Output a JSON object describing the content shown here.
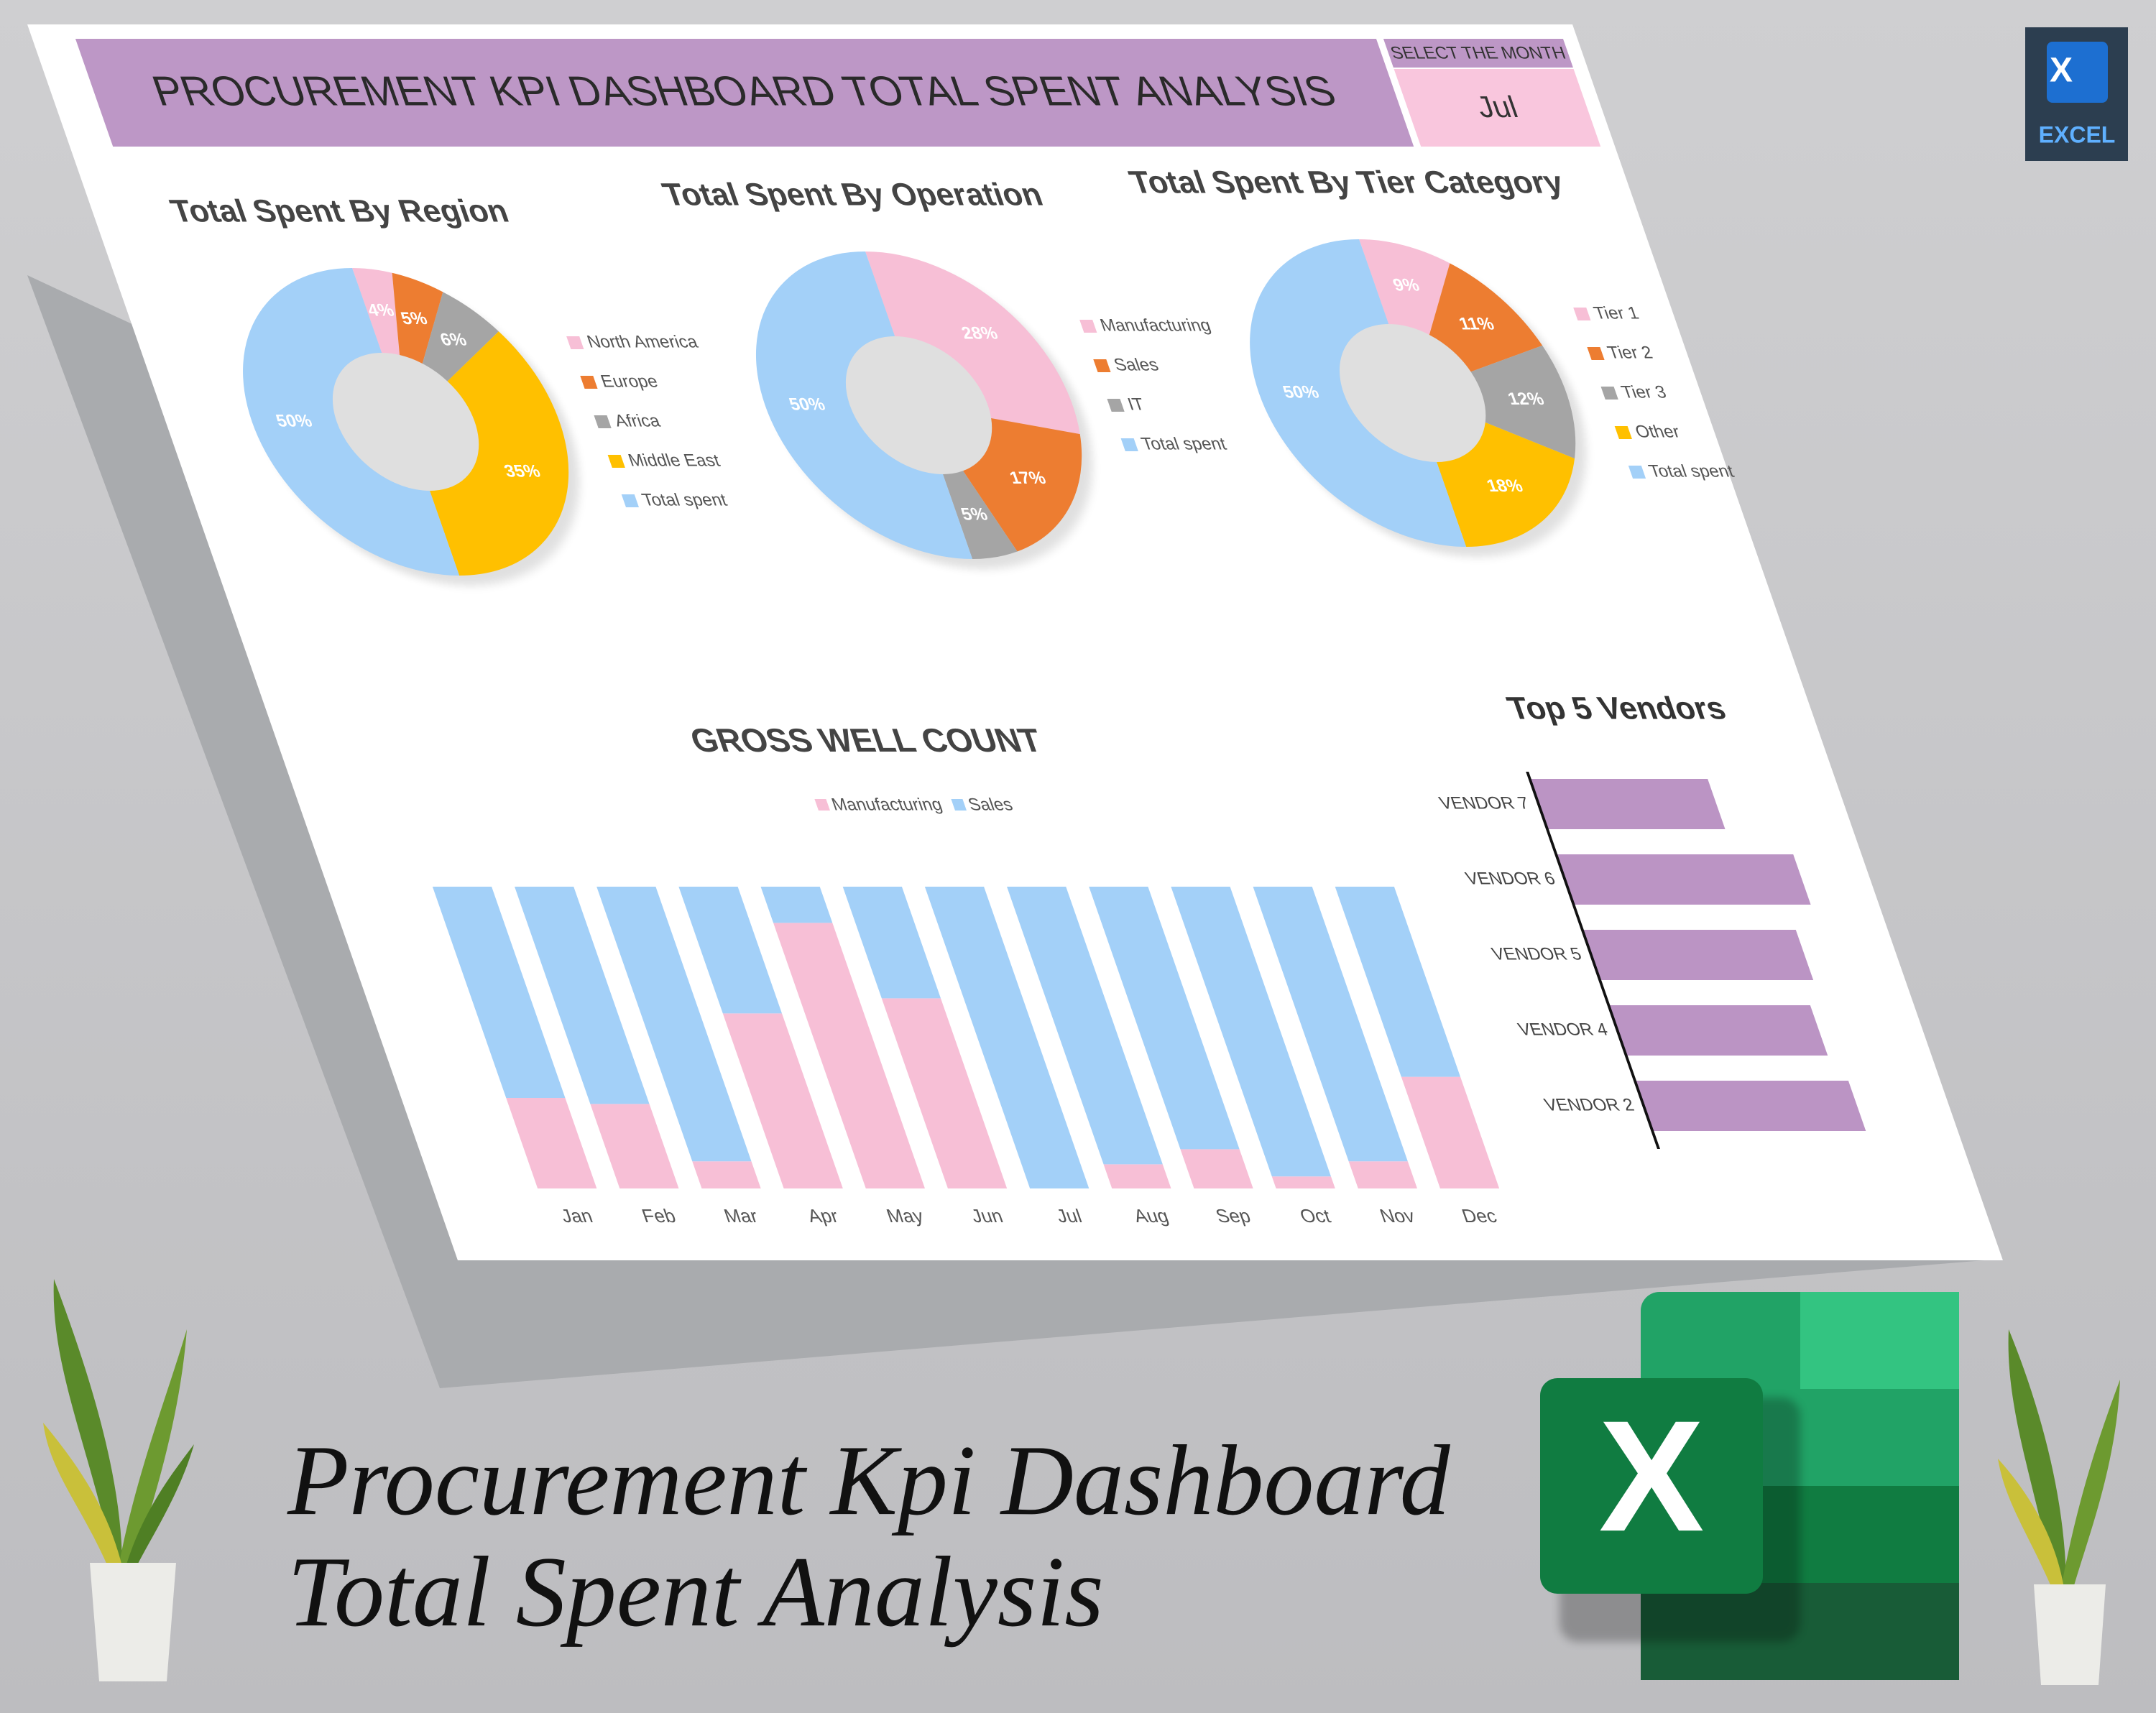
{
  "header": {
    "title": "PROCUREMENT KPI DASHBOARD TOTAL SPENT ANALYSIS",
    "month_label": "SELECT THE MONTH",
    "month": "Jul"
  },
  "chart_data": [
    {
      "type": "donut",
      "title": "Total Spent By Region",
      "categories": [
        "North America",
        "Europe",
        "Africa",
        "Middle East",
        "Total spent"
      ],
      "values": [
        4,
        5,
        6,
        35,
        50
      ],
      "value_labels": [
        "4%",
        "5%",
        "6%",
        "35%",
        "50%"
      ],
      "colors": [
        "#f7bfd6",
        "#ed7d31",
        "#a5a5a5",
        "#ffc000",
        "#a3d0f8"
      ]
    },
    {
      "type": "donut",
      "title": "Total Spent By Operation",
      "categories": [
        "Manufacturing",
        "Sales",
        "IT",
        "Total spent"
      ],
      "values": [
        28,
        17,
        5,
        50
      ],
      "value_labels": [
        "28%",
        "17%",
        "5%",
        "50%"
      ],
      "colors": [
        "#f7bfd6",
        "#ed7d31",
        "#a5a5a5",
        "#a3d0f8"
      ]
    },
    {
      "type": "donut",
      "title": "Total Spent By Tier Category",
      "categories": [
        "Tier 1",
        "Tier 2",
        "Tier 3",
        "Other",
        "Total spent"
      ],
      "values": [
        9,
        11,
        12,
        18,
        50
      ],
      "value_labels": [
        "9%",
        "11%",
        "12%",
        "18%",
        "50%"
      ],
      "colors": [
        "#f7bfd6",
        "#ed7d31",
        "#a5a5a5",
        "#ffc000",
        "#a3d0f8"
      ]
    },
    {
      "type": "stacked_bar",
      "title": "GROSS WELL COUNT",
      "categories": [
        "Jan",
        "Feb",
        "Mar",
        "Apr",
        "May",
        "Jun",
        "Jul",
        "Aug",
        "Sep",
        "Oct",
        "Nov",
        "Dec"
      ],
      "series": [
        {
          "name": "Manufacturing",
          "color": "#f7bfd6",
          "values": [
            30,
            28,
            9,
            58,
            88,
            63,
            0,
            8,
            13,
            4,
            9,
            37
          ]
        },
        {
          "name": "Sales",
          "color": "#a3d0f8",
          "values": [
            70,
            72,
            91,
            42,
            12,
            37,
            100,
            92,
            87,
            96,
            91,
            63
          ]
        }
      ],
      "ylim": [
        0,
        100
      ]
    },
    {
      "type": "barh",
      "title": "Top 5 Vendors",
      "categories": [
        "VENDOR 7",
        "VENDOR 6",
        "VENDOR 5",
        "VENDOR 4",
        "VENDOR 2"
      ],
      "values": [
        75,
        100,
        90,
        85,
        90
      ],
      "color": "#bb94c4",
      "xlim": [
        0,
        100
      ]
    }
  ],
  "caption": {
    "line1": "Procurement Kpi Dashboard",
    "line2": "Total Spent Analysis"
  },
  "badge": {
    "label": "EXCEL",
    "letter": "X"
  }
}
